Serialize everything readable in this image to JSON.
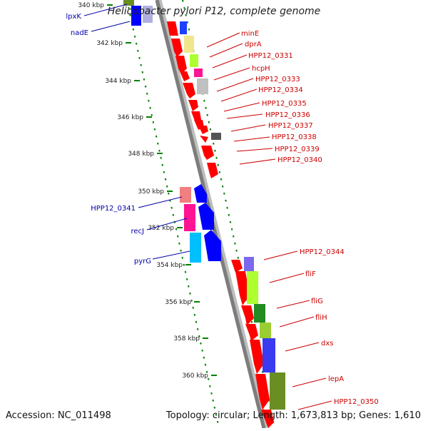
{
  "title": "Helicobacter pylori P12, complete genome",
  "footer": {
    "accession": "Accession: NC_011498",
    "summary": "Topology: circular; Length: 1,673,813 bp; Genes: 1,610"
  },
  "colors": {
    "forward_default": "#ff0000",
    "reverse_default": "#0000ff",
    "label_forward": "#cc0000",
    "label_reverse": "#0000aa",
    "tick": "#008000",
    "backbone": "#8c8c8c"
  },
  "scale": {
    "unit": "kbp",
    "ticks": [
      "340 kbp",
      "342 kbp",
      "344 kbp",
      "346 kbp",
      "348 kbp",
      "350 kbp",
      "352 kbp",
      "354 kbp",
      "356 kbp",
      "358 kbp",
      "360 kbp"
    ]
  },
  "labels": {
    "reverse": [
      "lpxK",
      "nadE",
      "HPP12_0341",
      "recJ",
      "pyrG"
    ],
    "forward": [
      "minE",
      "dprA",
      "HPP12_0331",
      "hcpH",
      "HPP12_0333",
      "HPP12_0334",
      "HPP12_0335",
      "HPP12_0336",
      "HPP12_0337",
      "HPP12_0338",
      "HPP12_0339",
      "HPP12_0340",
      "HPP12_0344",
      "fliF",
      "fliG",
      "fliH",
      "dxs",
      "lepA",
      "HPP12_0350"
    ]
  }
}
